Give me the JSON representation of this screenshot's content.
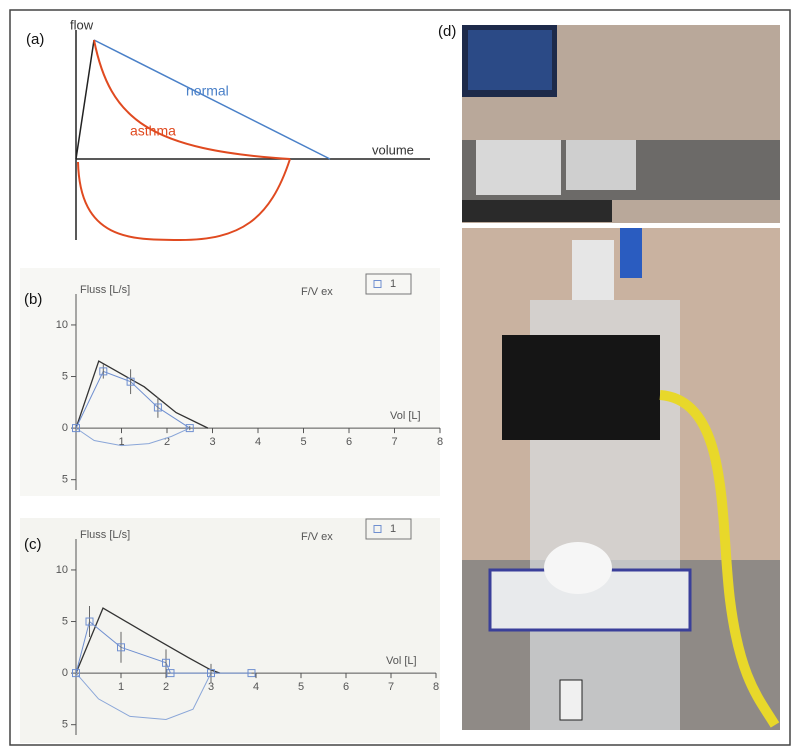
{
  "figure": {
    "a": {
      "label": "(a)",
      "y_axis": "flow",
      "x_axis": "volume",
      "normal": "normal",
      "asthma": "asthma"
    },
    "b": {
      "label": "(b)"
    },
    "c": {
      "label": "(c)"
    },
    "d": {
      "label": "(d)"
    }
  },
  "chart_data": [
    {
      "type": "line",
      "y_axis_label": "Fluss [L/s]",
      "x_axis_label": "Vol [L]",
      "legend_title": "F/V ex",
      "xlim": [
        0,
        8
      ],
      "ylim": [
        -6,
        13
      ],
      "xticks": [
        1,
        2,
        3,
        4,
        5,
        6,
        7,
        8
      ],
      "yticks": [
        {
          "value": -5,
          "label": "5"
        },
        0,
        5,
        10
      ],
      "series": [
        {
          "name": "1",
          "color": "#6f8fd0",
          "x": [
            0,
            0.6,
            1.2,
            1.8,
            2.5
          ],
          "values": [
            0,
            5.5,
            4.5,
            2,
            0
          ],
          "errors": [
            0,
            0.7,
            1.2,
            1,
            0.2
          ]
        }
      ],
      "reference_curve": {
        "color": "#333333",
        "x": [
          0,
          0.5,
          1.5,
          2.2,
          2.9
        ],
        "values": [
          0,
          6.5,
          4,
          1.5,
          0
        ]
      },
      "inspiratory_curve": {
        "color": "#8aa6d8",
        "x": [
          0,
          0.4,
          1,
          1.6,
          2.1,
          2.5
        ],
        "values": [
          0,
          -1.2,
          -1.7,
          -1.5,
          -0.8,
          0
        ]
      }
    },
    {
      "type": "line",
      "y_axis_label": "Fluss [L/s]",
      "x_axis_label": "Vol [L]",
      "legend_title": "F/V ex",
      "xlim": [
        0,
        8
      ],
      "ylim": [
        -6,
        13
      ],
      "xticks": [
        1,
        2,
        3,
        4,
        5,
        6,
        7,
        8
      ],
      "yticks": [
        {
          "value": -5,
          "label": "5"
        },
        0,
        5,
        10
      ],
      "series": [
        {
          "name": "1",
          "color": "#6f8fd0",
          "x": [
            0,
            0.3,
            1,
            2,
            2.1,
            3,
            3.9
          ],
          "values": [
            0,
            5,
            2.5,
            1,
            0,
            0,
            0
          ],
          "errors": [
            0,
            1.5,
            1.5,
            1.3,
            0,
            0.9,
            0
          ]
        }
      ],
      "reference_curve": {
        "color": "#333333",
        "x": [
          0,
          0.6,
          1.5,
          2.5,
          3,
          3.2
        ],
        "values": [
          0,
          6.3,
          4,
          1.5,
          0.3,
          0
        ]
      },
      "inspiratory_curve": {
        "color": "#8aa6d8",
        "x": [
          0,
          0.5,
          1.2,
          2,
          2.6,
          3
        ],
        "values": [
          0,
          -2.5,
          -4.2,
          -4.5,
          -3.5,
          0
        ]
      }
    }
  ]
}
